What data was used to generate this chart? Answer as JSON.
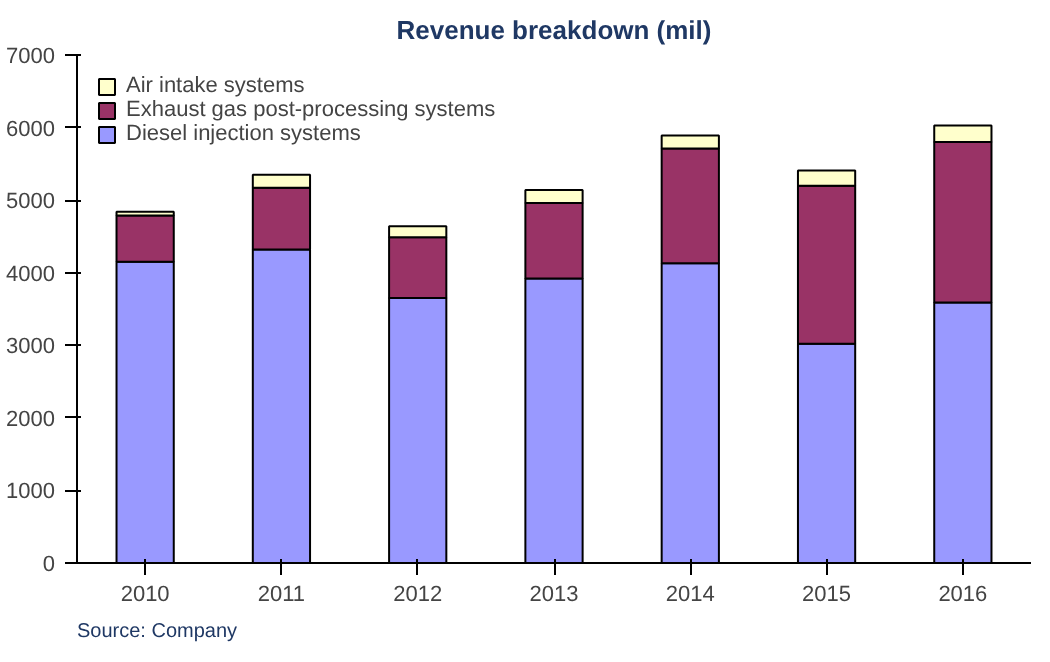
{
  "chart_data": {
    "type": "bar",
    "title": "Revenue breakdown (mil)",
    "stacked": true,
    "categories": [
      "2010",
      "2011",
      "2012",
      "2013",
      "2014",
      "2015",
      "2016"
    ],
    "series": [
      {
        "name": "Diesel injection systems",
        "color": "#9999ff",
        "values": [
          4150,
          4320,
          3650,
          3920,
          4130,
          3020,
          3590
        ]
      },
      {
        "name": "Exhaust gas post-processing systems",
        "color": "#993366",
        "values": [
          640,
          850,
          840,
          1040,
          1580,
          2180,
          2210
        ]
      },
      {
        "name": "Air intake systems",
        "color": "#ffffcc",
        "values": [
          50,
          180,
          150,
          180,
          180,
          210,
          230
        ]
      }
    ],
    "ylim": [
      0,
      7000
    ],
    "yticks": [
      0,
      1000,
      2000,
      3000,
      4000,
      5000,
      6000,
      7000
    ],
    "grid": false,
    "legend": "top left",
    "annotations": [
      "Source: Company"
    ]
  }
}
